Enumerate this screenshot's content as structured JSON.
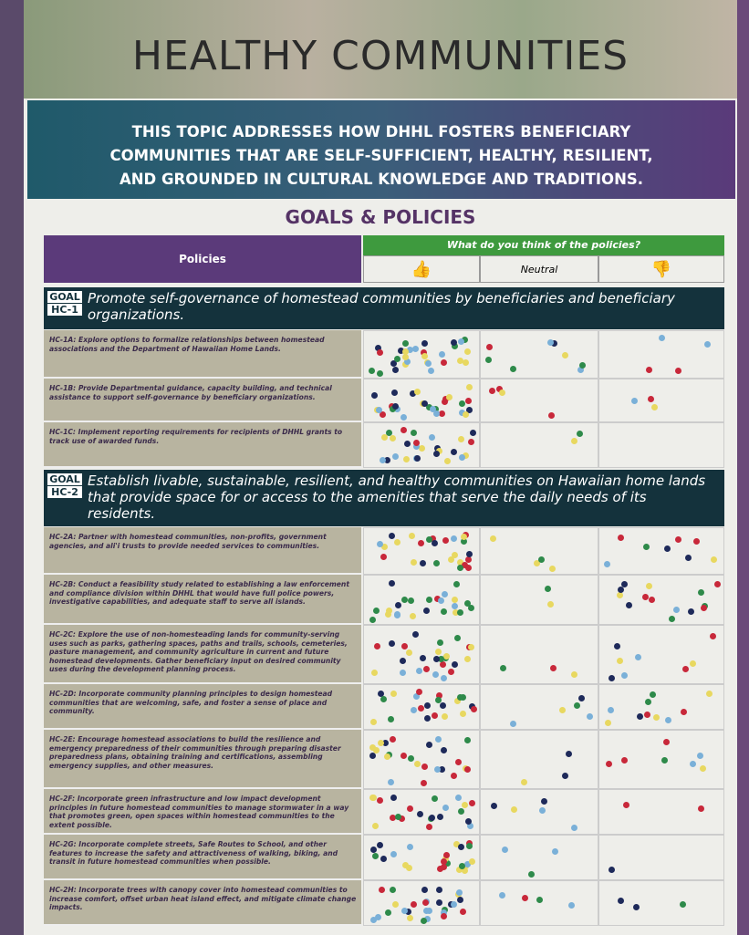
{
  "header": {
    "title": "HEALTHY COMMUNITIES"
  },
  "intro": "THIS TOPIC ADDRESSES HOW DHHL FOSTERS BENEFICIARY COMMUNITIES THAT ARE SELF-SUFFICIENT, HEALTHY, RESILIENT, AND GROUNDED IN CULTURAL KNOWLEDGE AND TRADITIONS.",
  "section_title": "GOALS & POLICIES",
  "table": {
    "policies_header": "Policies",
    "question": "What do you think of the policies?",
    "neutral": "Neutral",
    "goals": [
      {
        "label": "GOAL",
        "id": "HC-1",
        "text": "Promote self-governance of homestead communities by beneficiaries and beneficiary organizations.",
        "policies": [
          "HC-1A: Explore options to formalize relationships between homestead associations and the Department of Hawaiian Home Lands.",
          "HC-1B: Provide Departmental guidance, capacity building, and technical assistance to support self-governance by beneficiary organizations.",
          "HC-1C: Implement reporting requirements for recipients of DHHL grants to track use of awarded funds."
        ]
      },
      {
        "label": "GOAL",
        "id": "HC-2",
        "text": "Establish livable, sustainable, resilient, and healthy communities on Hawaiian home lands that provide space for or access to the amenities that serve the daily needs of its residents.",
        "policies": [
          "HC-2A: Partner with homestead communities, non-profits, government agencies, and ali'i trusts to provide needed services to communities.",
          "HC-2B: Conduct a feasibility study related to establishing a law enforcement and compliance division within DHHL that would have full police powers, investigative capabilities, and adequate staff to serve all islands.",
          "HC-2C: Explore the use of non-homesteading lands for community-serving uses such as parks, gathering spaces, paths and trails, schools, cemeteries, pasture management, and community agriculture in current and future homestead developments. Gather beneficiary input on desired community uses during the development planning process.",
          "HC-2D: Incorporate community planning principles to design homestead communities that are welcoming, safe, and foster a sense of place and community.",
          "HC-2E: Encourage homestead associations to build the resilience and emergency preparedness of their communities through preparing disaster preparedness plans, obtaining training and certifications, assembling emergency supplies, and other measures.",
          "HC-2F: Incorporate green infrastructure and low impact development principles in future homestead communities to manage stormwater in a way that promotes green, open spaces within homestead communities to the extent possible.",
          "HC-2G: Incorporate complete streets, Safe Routes to School, and other features to increase the safety and attractiveness of walking, biking, and transit in future homestead communities when possible.",
          "HC-2H: Incorporate trees with canopy cover into homestead communities to increase comfort, offset urban heat island effect, and mitigate climate change impacts."
        ]
      }
    ]
  }
}
